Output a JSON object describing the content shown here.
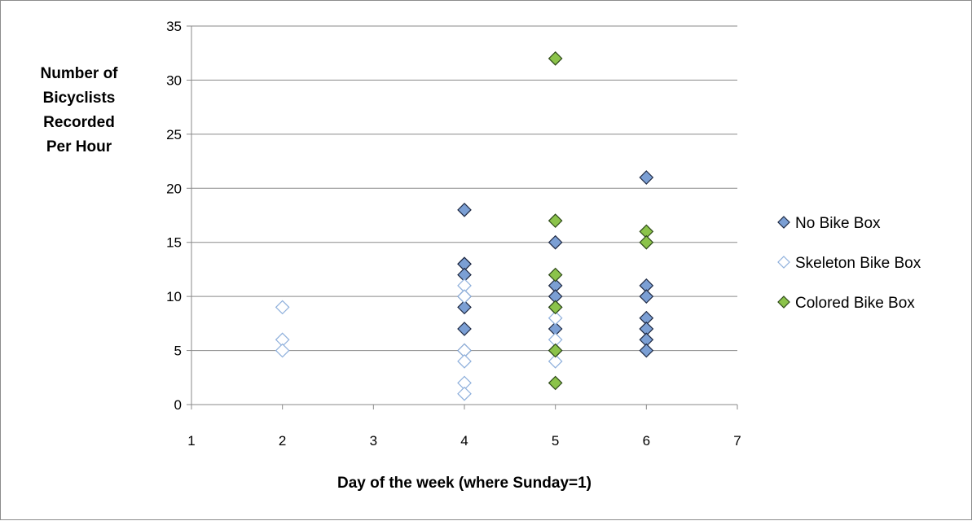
{
  "chart_data": {
    "type": "scatter",
    "title": "",
    "ylabel_lines": [
      "Number of",
      "Bicyclists",
      "Recorded",
      "Per Hour"
    ],
    "xlabel": "Day of the week (where Sunday=1)",
    "xlim": [
      1,
      7
    ],
    "ylim": [
      0,
      35
    ],
    "x_ticks": [
      1,
      2,
      3,
      4,
      5,
      6,
      7
    ],
    "y_ticks": [
      0,
      5,
      10,
      15,
      20,
      25,
      30,
      35
    ],
    "grid": "horizontal",
    "legend_position": "right",
    "series": [
      {
        "name": "No Bike Box",
        "marker": "diamond-filled",
        "color": "#7b9fd4",
        "stroke": "#1f2a44",
        "points": [
          [
            4,
            18
          ],
          [
            4,
            13
          ],
          [
            4,
            13
          ],
          [
            4,
            12
          ],
          [
            4,
            10
          ],
          [
            4,
            9
          ],
          [
            4,
            7
          ],
          [
            4,
            5
          ],
          [
            5,
            15
          ],
          [
            5,
            11
          ],
          [
            5,
            10
          ],
          [
            5,
            9
          ],
          [
            5,
            7
          ],
          [
            5,
            5
          ],
          [
            6,
            21
          ],
          [
            6,
            11
          ],
          [
            6,
            10
          ],
          [
            6,
            8
          ],
          [
            6,
            7
          ],
          [
            6,
            7
          ],
          [
            6,
            6
          ],
          [
            6,
            5
          ]
        ]
      },
      {
        "name": "Skeleton Bike Box",
        "marker": "diamond-hollow",
        "color": "#ffffff",
        "stroke": "#8fb0dc",
        "points": [
          [
            2,
            9
          ],
          [
            2,
            6
          ],
          [
            2,
            5
          ],
          [
            4,
            11
          ],
          [
            4,
            10
          ],
          [
            4,
            5
          ],
          [
            4,
            4
          ],
          [
            4,
            2
          ],
          [
            4,
            1
          ],
          [
            5,
            8
          ],
          [
            5,
            6
          ],
          [
            5,
            4
          ]
        ]
      },
      {
        "name": "Colored Bike Box",
        "marker": "diamond-filled",
        "color": "#8bc34a",
        "stroke": "#2f4a1a",
        "points": [
          [
            5,
            32
          ],
          [
            5,
            17
          ],
          [
            5,
            12
          ],
          [
            5,
            9
          ],
          [
            5,
            5
          ],
          [
            5,
            2
          ],
          [
            6,
            16
          ],
          [
            6,
            15
          ]
        ]
      }
    ]
  }
}
